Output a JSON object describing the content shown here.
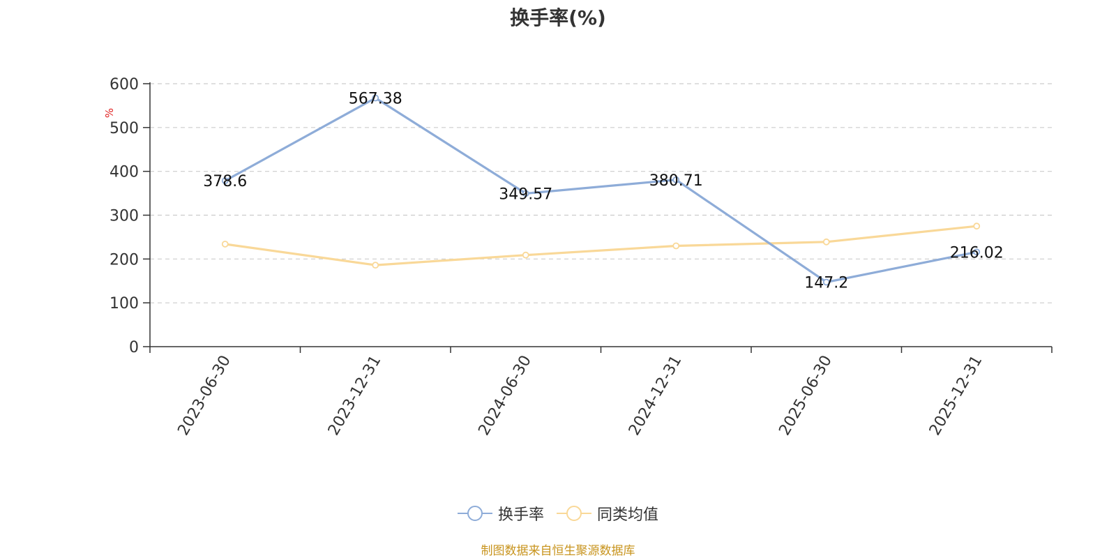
{
  "chart_data": {
    "type": "line",
    "title": "换手率(%)",
    "ylabel": "%",
    "xlabel": "",
    "ylim": [
      0,
      600
    ],
    "yticks": [
      0,
      100,
      200,
      300,
      400,
      500,
      600
    ],
    "grid": true,
    "legend_position": "bottom-center",
    "categories": [
      "2023-06-30",
      "2023-12-31",
      "2024-06-30",
      "2024-12-31",
      "2025-06-30",
      "2025-12-31"
    ],
    "series": [
      {
        "name": "换手率",
        "color": "#8eacd8",
        "values": [
          378.6,
          567.38,
          349.57,
          380.71,
          147.2,
          216.02
        ],
        "labels": [
          "378.6",
          "567.38",
          "349.57",
          "380.71",
          "147.2",
          "216.02"
        ]
      },
      {
        "name": "同类均值",
        "color": "#f9d898",
        "values": [
          234,
          186,
          209,
          230,
          239,
          275
        ]
      }
    ]
  },
  "footer": {
    "source": "制图数据来自恒生聚源数据库",
    "source_color": "#c8941e"
  },
  "colors": {
    "axis": "#333333",
    "grid": "#cccccc",
    "ylabel": "#e02020"
  }
}
